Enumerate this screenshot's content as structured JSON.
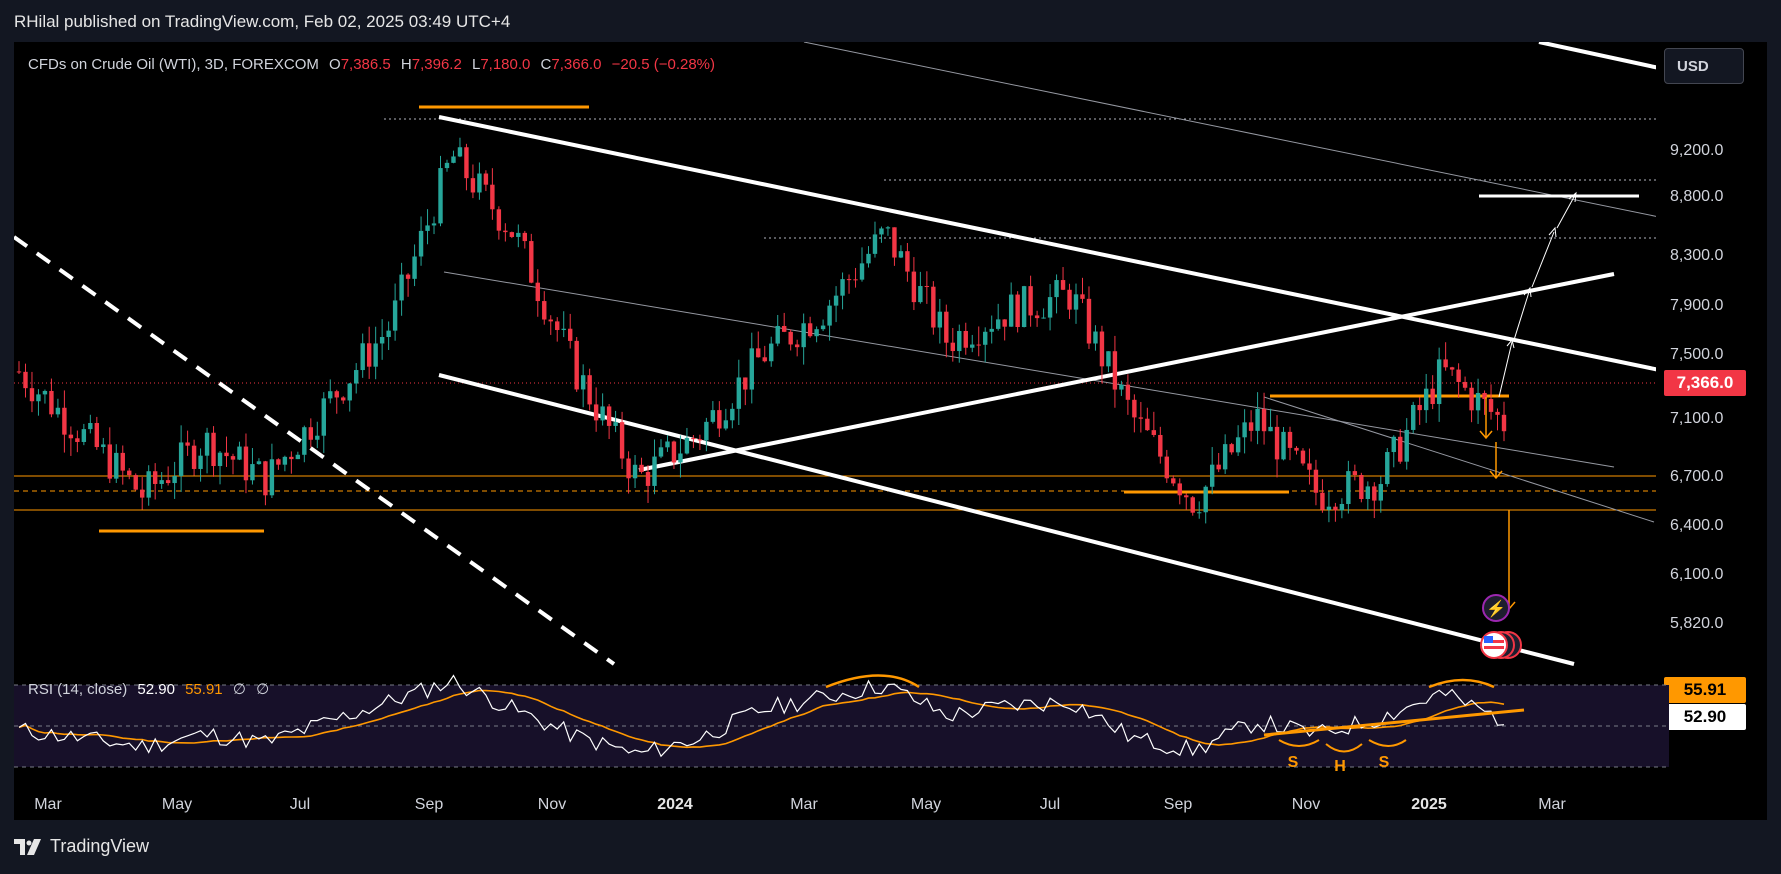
{
  "header": {
    "published": "RHilal published on TradingView.com, Feb 02, 2025 03:49 UTC+4"
  },
  "legend": {
    "symbol": "CFDs on Crude Oil (WTI), 3D, FOREXCOM",
    "open_label": "O",
    "open": "7,386.5",
    "high_label": "H",
    "high": "7,396.2",
    "low_label": "L",
    "low": "7,180.0",
    "close_label": "C",
    "close": "7,366.0",
    "change": "−20.5 (−0.28%)"
  },
  "currency": "USD",
  "current_price": "7,366.0",
  "rsi_legend": {
    "label": "RSI (14, close)",
    "rsi": "52.90",
    "ma": "55.91",
    "n1": "∅",
    "n2": "∅"
  },
  "rsi_badges": {
    "ma": "55.91",
    "rsi": "52.90"
  },
  "pattern_labels": {
    "s1": "S",
    "h": "H",
    "s2": "S"
  },
  "footer": {
    "brand": "TradingView"
  },
  "colors": {
    "bg": "#000000",
    "up": "#26a69a",
    "down": "#f23645",
    "orange": "#ff9800",
    "trend": "#ffffff",
    "rsi_ma": "#ff9800"
  },
  "chart_data": {
    "type": "candlestick",
    "price_ticks": [
      "9,200.0",
      "8,800.0",
      "8,300.0",
      "7,900.0",
      "7,500.0",
      "7,100.0",
      "6,700.0",
      "6,400.0",
      "6,100.0",
      "5,820.0"
    ],
    "time_ticks": [
      "Mar",
      "May",
      "Jul",
      "Sep",
      "Nov",
      "2024",
      "Mar",
      "May",
      "Jul",
      "Sep",
      "Nov",
      "2025",
      "Mar"
    ],
    "x": [
      "2023-02",
      "2023-03",
      "2023-04",
      "2023-05",
      "2023-06",
      "2023-07",
      "2023-08",
      "2023-09",
      "2023-10",
      "2023-11",
      "2023-12",
      "2024-01",
      "2024-02",
      "2024-03",
      "2024-04",
      "2024-05",
      "2024-06",
      "2024-07",
      "2024-08",
      "2024-09",
      "2024-10",
      "2024-11",
      "2024-12",
      "2025-01",
      "2025-02"
    ],
    "close": [
      7700,
      7300,
      6900,
      7250,
      7000,
      7500,
      8000,
      9100,
      8600,
      7700,
      7000,
      7300,
      7800,
      8100,
      8600,
      7900,
      8100,
      8200,
      7400,
      6850,
      7400,
      6900,
      7000,
      7700,
      7366
    ],
    "ylim": [
      5800,
      9450
    ],
    "rsi": {
      "label": "RSI (14, close)",
      "value": 52.9,
      "ma": 55.91,
      "levels": [
        70,
        50,
        30
      ]
    }
  }
}
